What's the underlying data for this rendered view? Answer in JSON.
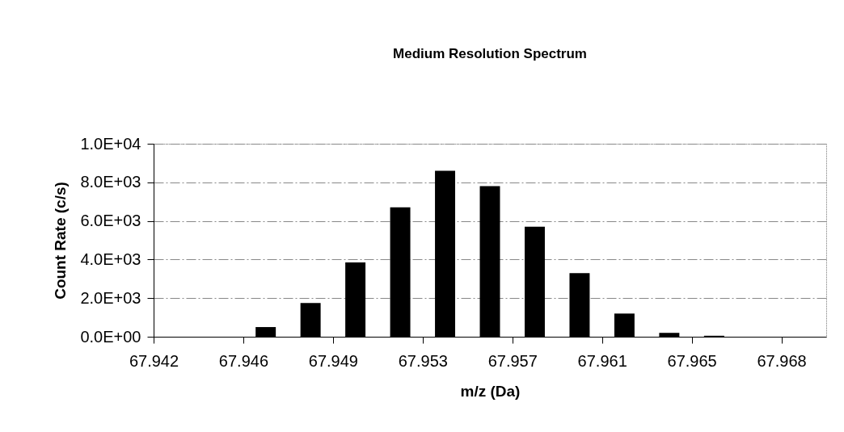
{
  "chart_data": {
    "type": "bar",
    "title": "Medium Resolution Spectrum",
    "xlabel": "m/z (Da)",
    "ylabel": "Count Rate (c/s)",
    "categories": [
      "67.942",
      null,
      "67.946",
      null,
      "67.949",
      null,
      "67.953",
      null,
      "67.957",
      null,
      "67.961",
      null,
      "67.965",
      null,
      "67.968"
    ],
    "values": [
      0,
      0,
      500,
      1750,
      3850,
      6700,
      8600,
      7800,
      5700,
      3300,
      1200,
      200,
      50,
      0,
      0
    ],
    "color": "#000000",
    "ylim": [
      0,
      10000
    ],
    "yticks": [
      {
        "value": 0,
        "label": "0.0E+00"
      },
      {
        "value": 2000,
        "label": "2.0E+03"
      },
      {
        "value": 4000,
        "label": "4.0E+03"
      },
      {
        "value": 6000,
        "label": "6.0E+03"
      },
      {
        "value": 8000,
        "label": "8.0E+03"
      },
      {
        "value": 10000,
        "label": "1.0E+04"
      }
    ],
    "grid": "y"
  }
}
